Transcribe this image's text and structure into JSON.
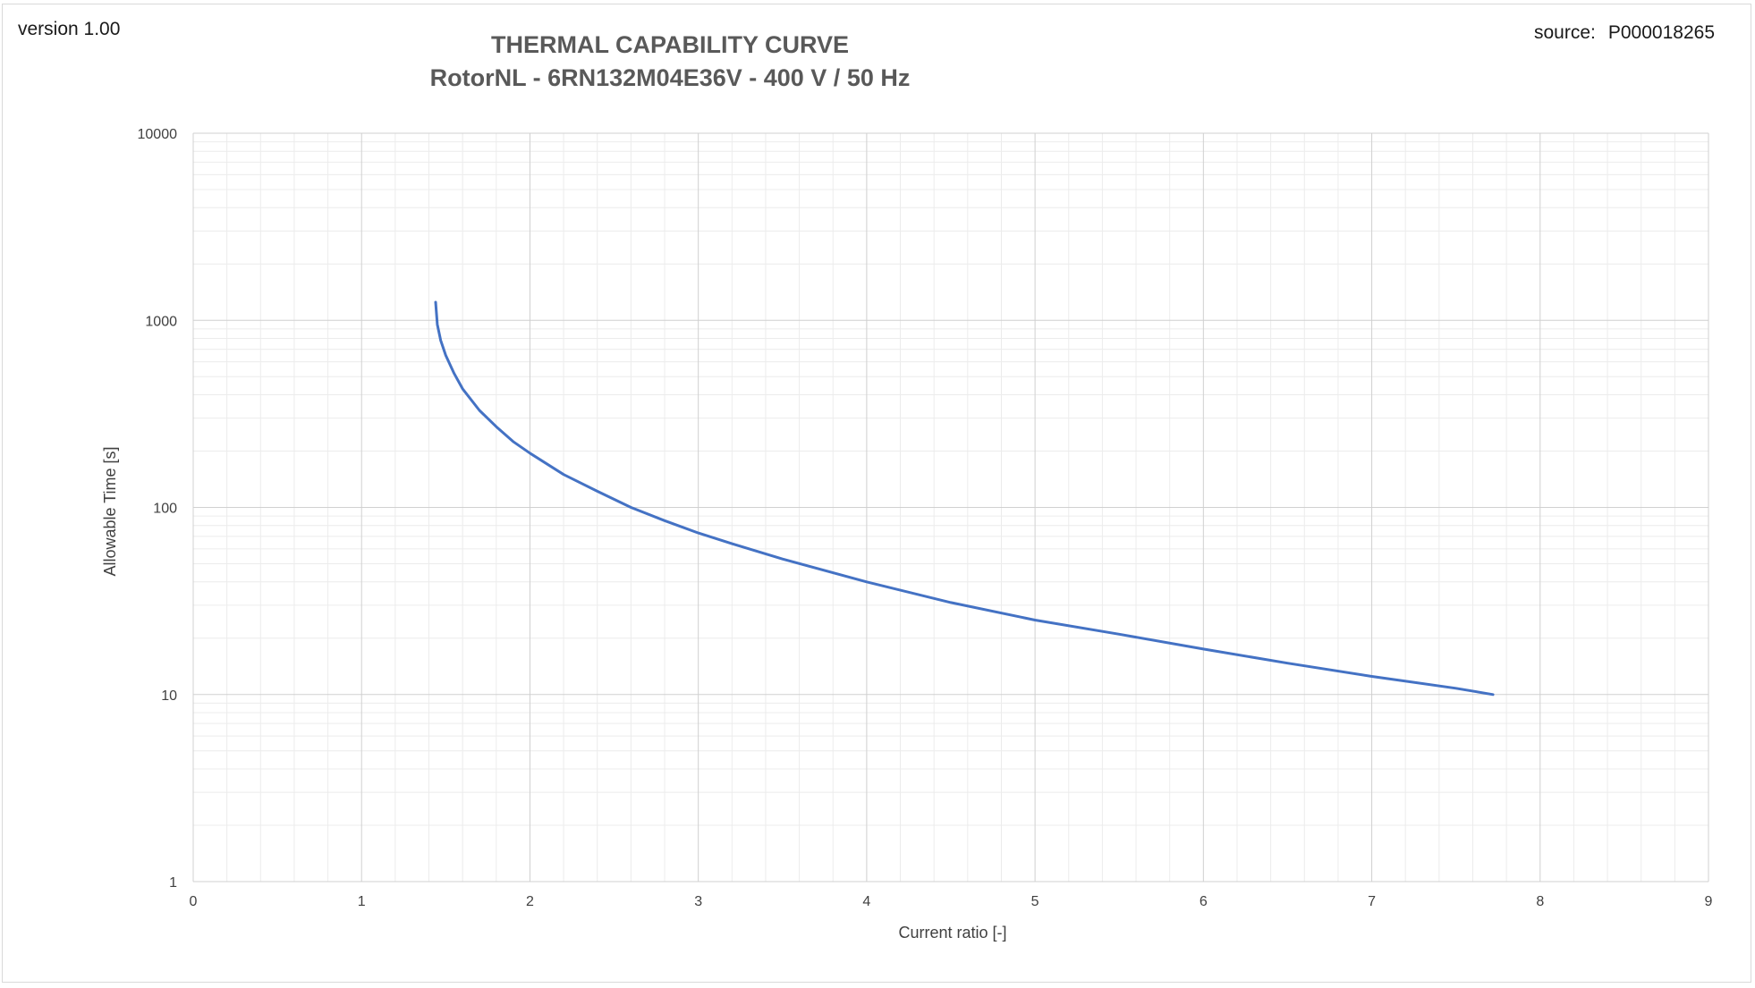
{
  "header": {
    "version": "version 1.00",
    "source_label": "source:",
    "source_id": "P000018265"
  },
  "chart_data": {
    "type": "line",
    "title": "THERMAL CAPABILITY CURVE",
    "subtitle": "RotorNL - 6RN132M04E36V - 400 V / 50 Hz",
    "xlabel": "Current ratio [-]",
    "ylabel": "Allowable Time [s]",
    "xlim": [
      0,
      9
    ],
    "ylim": [
      1,
      10000
    ],
    "y_scale": "log",
    "x_ticks": [
      "0",
      "1",
      "2",
      "3",
      "4",
      "5",
      "6",
      "7",
      "8",
      "9"
    ],
    "y_ticks": [
      "1",
      "10",
      "100",
      "1000",
      "10000"
    ],
    "grid": true,
    "legend": "none",
    "line_color": "#4472c4",
    "series": [
      {
        "x": [
          1.44,
          1.45,
          1.47,
          1.5,
          1.55,
          1.6,
          1.7,
          1.8,
          1.9,
          2.0,
          2.2,
          2.4,
          2.6,
          2.8,
          3.0,
          3.2,
          3.5,
          4.0,
          4.5,
          5.0,
          5.5,
          6.0,
          6.5,
          7.0,
          7.5,
          7.72
        ],
        "y": [
          1250,
          950,
          780,
          650,
          520,
          430,
          330,
          270,
          225,
          195,
          150,
          122,
          100,
          85,
          73,
          64,
          53,
          40,
          31,
          25,
          21,
          17.5,
          14.7,
          12.5,
          10.8,
          10
        ]
      }
    ]
  }
}
